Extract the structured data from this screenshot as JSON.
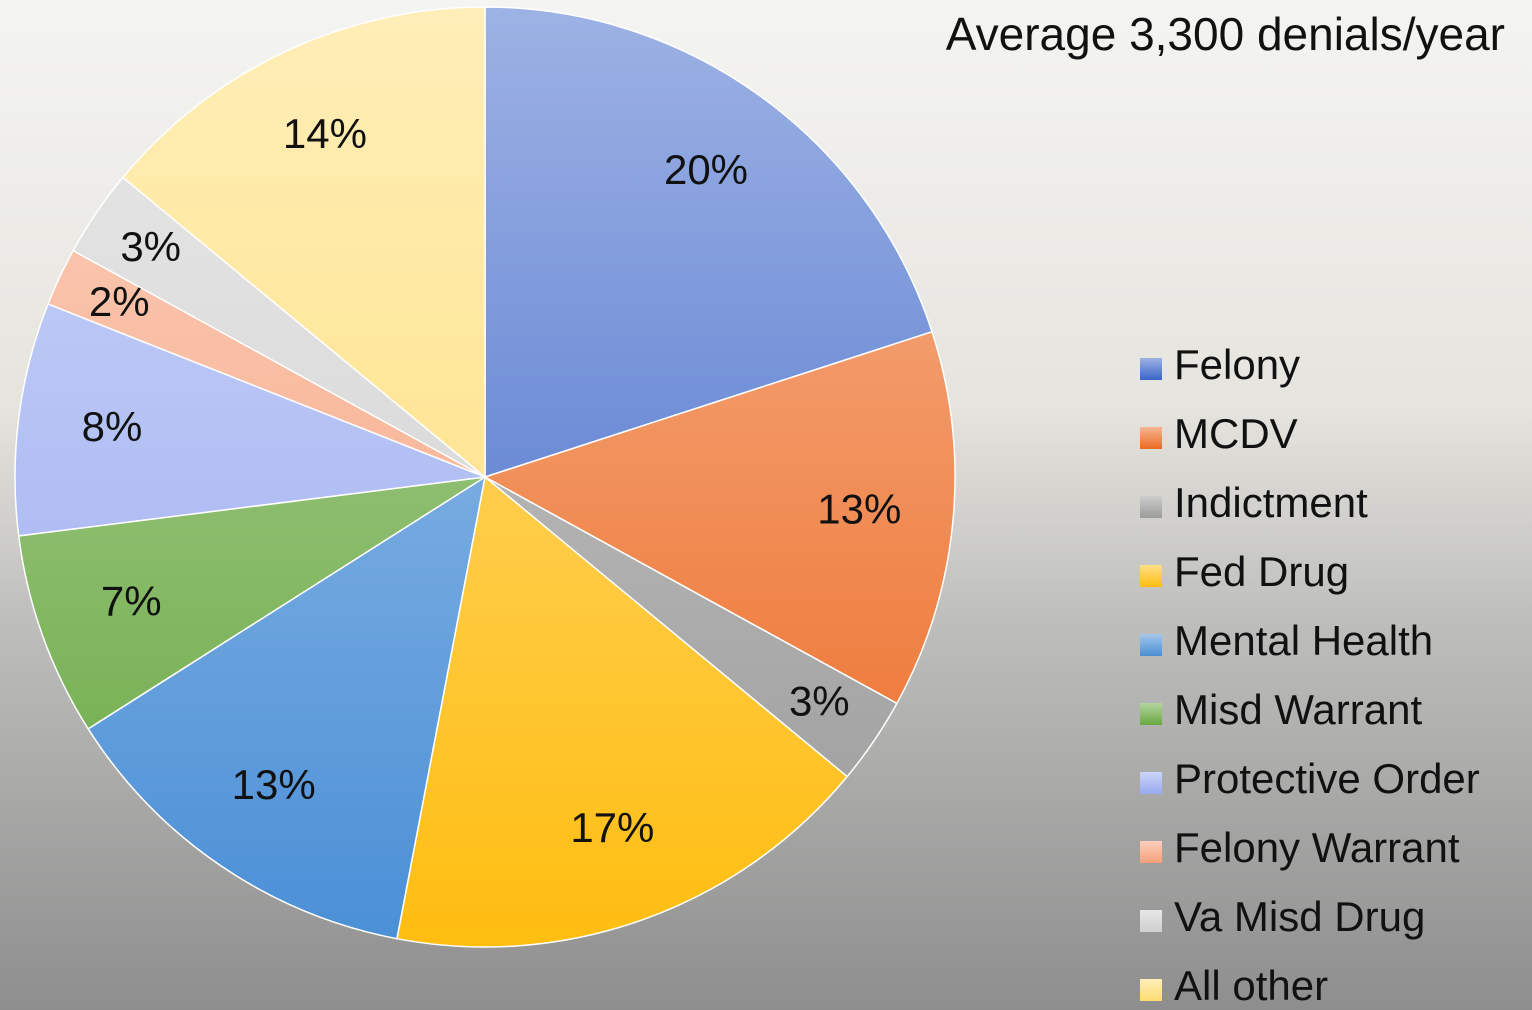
{
  "chart_data": {
    "type": "pie",
    "title": "Average 3,300 denials/year",
    "categories": [
      "Felony",
      "MCDV",
      "Indictment",
      "Fed Drug",
      "Mental Health",
      "Misd Warrant",
      "Protective Order",
      "Felony Warrant",
      "Va Misd Drug",
      "All other"
    ],
    "values": [
      20,
      13,
      3,
      17,
      13,
      7,
      8,
      2,
      3,
      14
    ],
    "value_labels": [
      "20%",
      "13%",
      "3%",
      "17%",
      "13%",
      "7%",
      "8%",
      "2%",
      "3%",
      "14%"
    ],
    "colors": [
      "#3a64c8",
      "#ec6a22",
      "#9a9a9a",
      "#ffbd10",
      "#4a8fd6",
      "#68a840",
      "#98aaf0",
      "#f6a07a",
      "#cfcfcf",
      "#ffdc70"
    ],
    "legend": "right"
  }
}
